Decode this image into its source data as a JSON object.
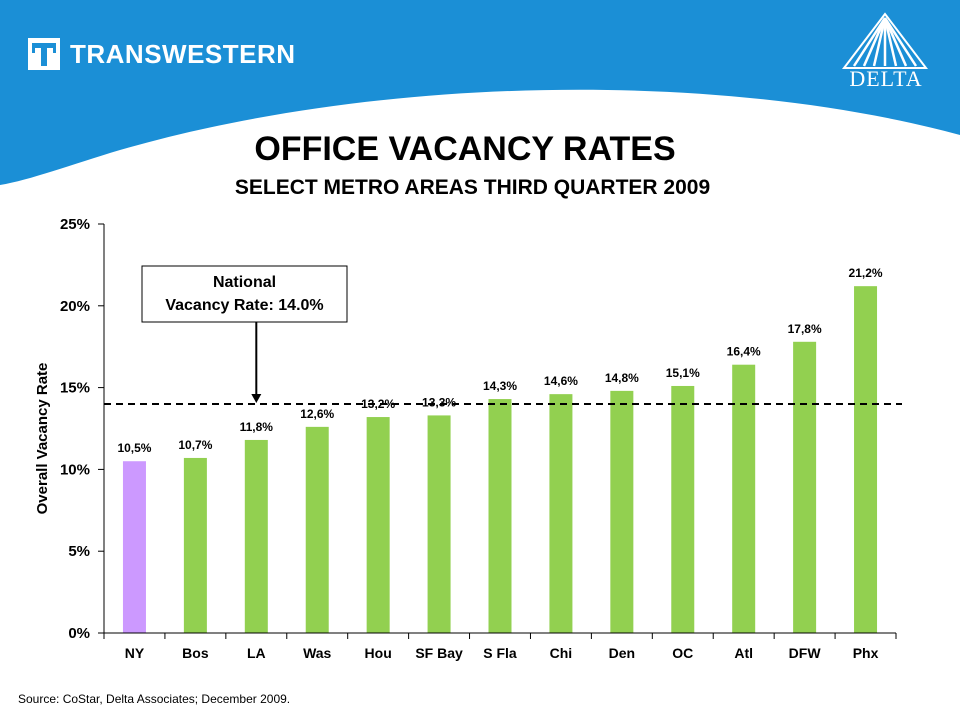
{
  "header": {
    "brand": "TRANSWESTERN",
    "partner_logo_text": "DELTA",
    "banner_color": "#1b8fd6"
  },
  "title": "OFFICE VACANCY RATES",
  "subtitle": "SELECT METRO AREAS    THIRD QUARTER 2009",
  "source": "Source: CoStar, Delta Associates; December 2009.",
  "chart_data": {
    "type": "bar",
    "categories": [
      "NY",
      "Bos",
      "LA",
      "Was",
      "Hou",
      "SF Bay",
      "S Fla",
      "Chi",
      "Den",
      "OC",
      "Atl",
      "DFW",
      "Phx"
    ],
    "values": [
      10.5,
      10.7,
      11.8,
      12.6,
      13.2,
      13.3,
      14.3,
      14.6,
      14.8,
      15.1,
      16.4,
      17.8,
      21.2
    ],
    "value_labels": [
      "10,5%",
      "10,7%",
      "11,8%",
      "12,6%",
      "13,2%",
      "13,3%",
      "14,3%",
      "14,6%",
      "14,8%",
      "15,1%",
      "16,4%",
      "17,8%",
      "21,2%"
    ],
    "bar_colors": [
      "#cc99ff",
      "#92d050",
      "#92d050",
      "#92d050",
      "#92d050",
      "#92d050",
      "#92d050",
      "#92d050",
      "#92d050",
      "#92d050",
      "#92d050",
      "#92d050",
      "#92d050"
    ],
    "ylabel": "Overall Vacancy Rate",
    "xlabel": "",
    "ylim": [
      0,
      25
    ],
    "yticks": [
      0,
      5,
      10,
      15,
      20,
      25
    ],
    "ytick_labels": [
      "0%",
      "5%",
      "10%",
      "15%",
      "20%",
      "25%"
    ],
    "reference_line": {
      "value": 14.0,
      "style": "dashed",
      "color": "#000000"
    },
    "annotation": {
      "lines": [
        "National",
        "Vacancy Rate: 14.0%"
      ],
      "arrow_to_category": "LA"
    },
    "grid": false,
    "legend": "none"
  }
}
